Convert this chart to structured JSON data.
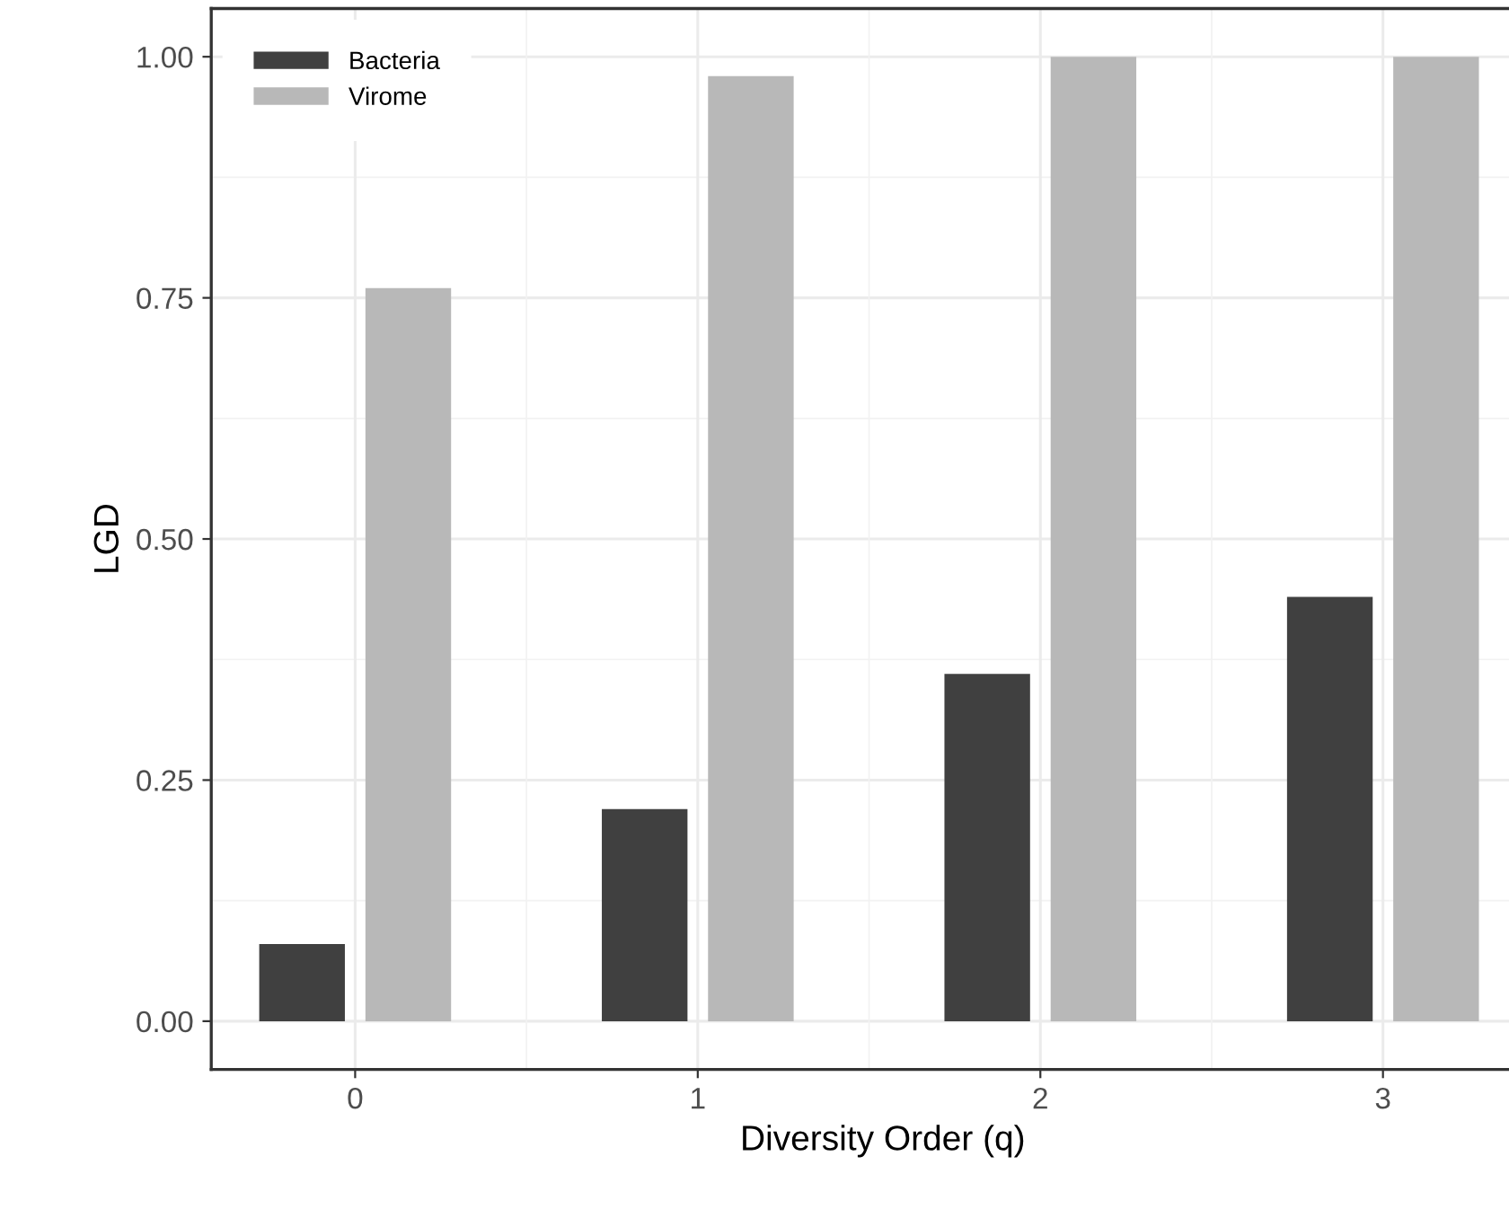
{
  "chart_data": {
    "type": "bar",
    "xlabel": "Diversity Order (q)",
    "ylabel": "LGD",
    "categories": [
      "0",
      "1",
      "2",
      "3"
    ],
    "series": [
      {
        "name": "Bacteria",
        "color": "#404040",
        "values": [
          0.08,
          0.22,
          0.36,
          0.44
        ]
      },
      {
        "name": "Virome",
        "color": "#b8b8b8",
        "values": [
          0.76,
          0.98,
          1.0,
          1.0
        ]
      }
    ],
    "ylim": [
      -0.05,
      1.05
    ],
    "yticks": [
      {
        "value": 0,
        "label": "0.00"
      },
      {
        "value": 0.25,
        "label": "0.25"
      },
      {
        "value": 0.5,
        "label": "0.50"
      },
      {
        "value": 0.75,
        "label": "0.75"
      },
      {
        "value": 1,
        "label": "1.00"
      }
    ],
    "grid": true,
    "legend": "top left"
  }
}
